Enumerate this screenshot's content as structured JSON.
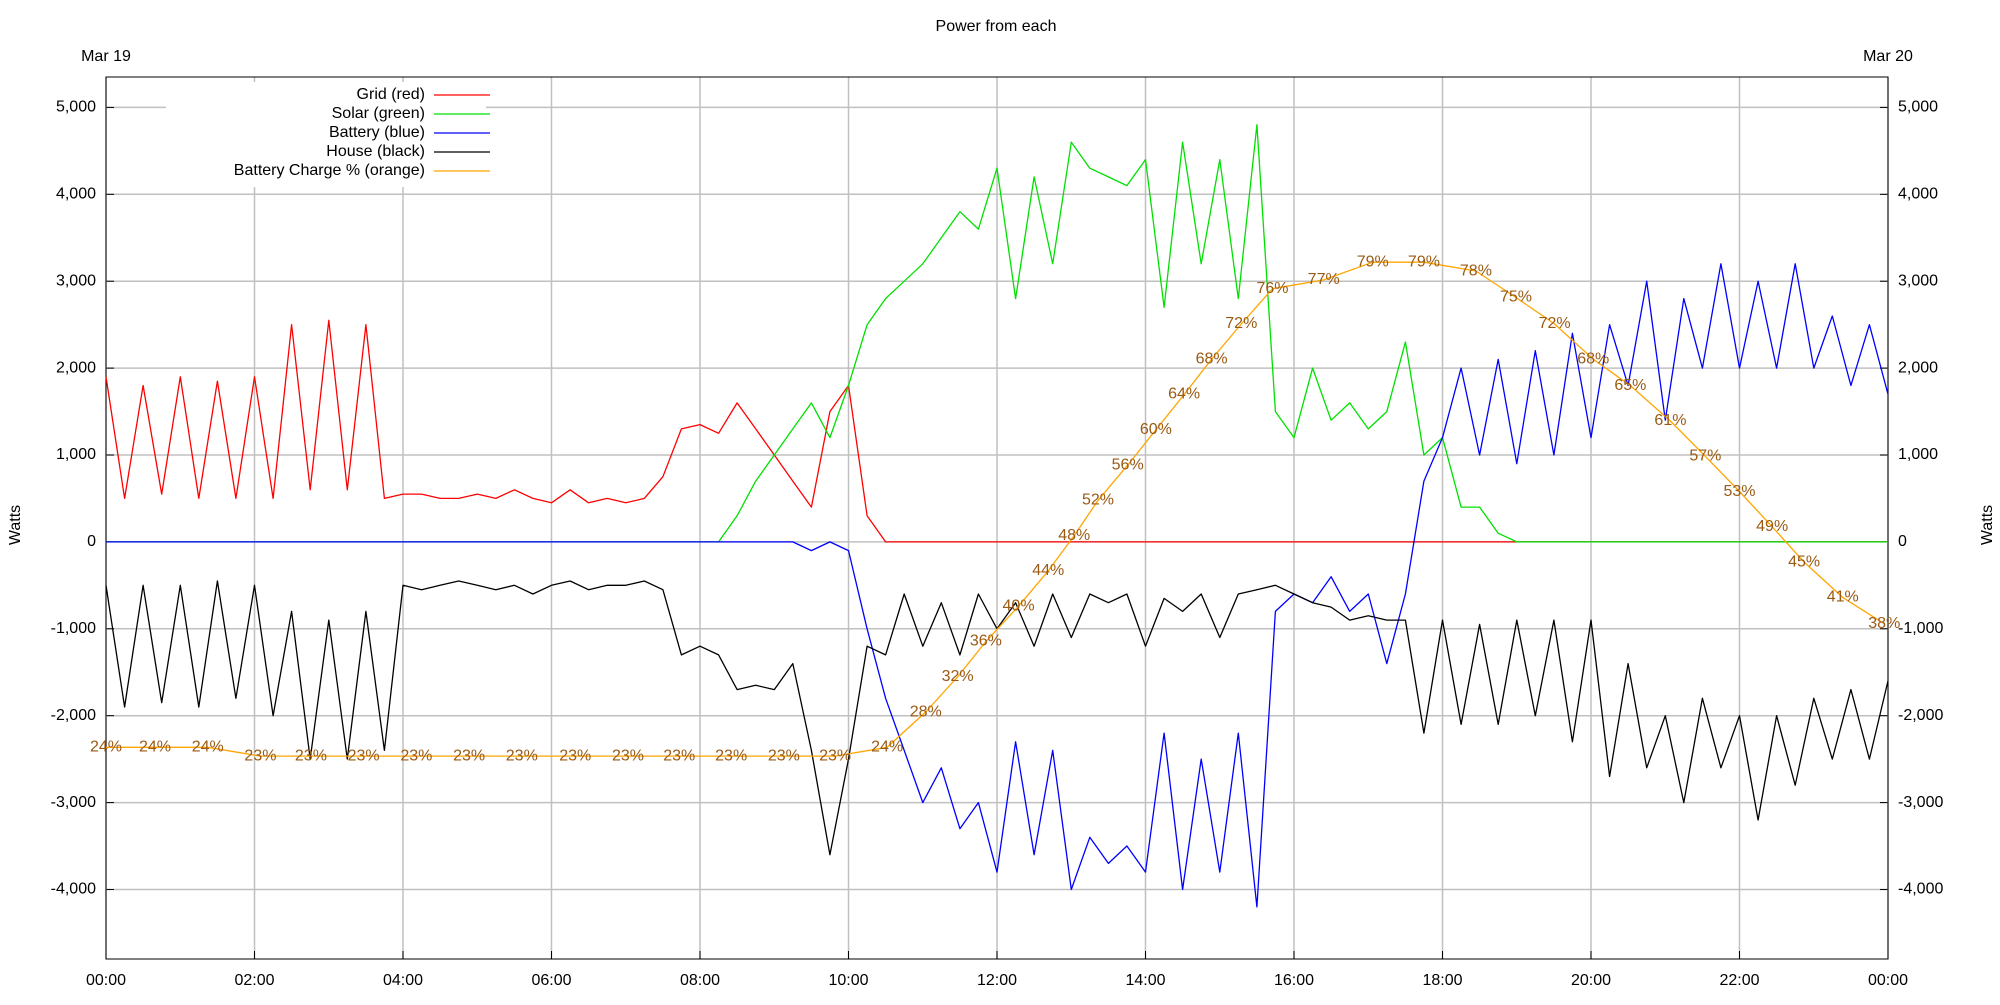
{
  "chart_data": {
    "type": "line",
    "title": "Power from each",
    "date_labels": [
      "Mar 19",
      "Mar 20"
    ],
    "ylabel": "Watts",
    "y2label": "Watts",
    "grid": true,
    "legend": "top-left",
    "label_color": "#9a5a14",
    "x": [
      0,
      0.25,
      0.5,
      0.75,
      1,
      1.25,
      1.5,
      1.75,
      2,
      2.25,
      2.5,
      2.75,
      3,
      3.25,
      3.5,
      3.75,
      4,
      4.25,
      4.5,
      4.75,
      5,
      5.25,
      5.5,
      5.75,
      6,
      6.25,
      6.5,
      6.75,
      7,
      7.25,
      7.5,
      7.75,
      8,
      8.25,
      8.5,
      8.75,
      9,
      9.25,
      9.5,
      9.75,
      10,
      10.25,
      10.5,
      10.75,
      11,
      11.25,
      11.5,
      11.75,
      12,
      12.25,
      12.5,
      12.75,
      13,
      13.25,
      13.5,
      13.75,
      14,
      14.25,
      14.5,
      14.75,
      15,
      15.25,
      15.5,
      15.75,
      16,
      16.25,
      16.5,
      16.75,
      17,
      17.25,
      17.5,
      17.75,
      18,
      18.25,
      18.5,
      18.75,
      19,
      19.25,
      19.5,
      19.75,
      20,
      20.25,
      20.5,
      20.75,
      21,
      21.25,
      21.5,
      21.75,
      22,
      22.25,
      22.5,
      22.75,
      23,
      23.25,
      23.5,
      23.75,
      24
    ],
    "xlim": [
      0,
      24
    ],
    "xticks": [
      {
        "value": 0,
        "label": "00:00"
      },
      {
        "value": 2,
        "label": "02:00"
      },
      {
        "value": 4,
        "label": "04:00"
      },
      {
        "value": 6,
        "label": "06:00"
      },
      {
        "value": 8,
        "label": "08:00"
      },
      {
        "value": 10,
        "label": "10:00"
      },
      {
        "value": 12,
        "label": "12:00"
      },
      {
        "value": 14,
        "label": "14:00"
      },
      {
        "value": 16,
        "label": "16:00"
      },
      {
        "value": 18,
        "label": "18:00"
      },
      {
        "value": 20,
        "label": "20:00"
      },
      {
        "value": 22,
        "label": "22:00"
      },
      {
        "value": 24,
        "label": "00:00"
      }
    ],
    "ylim": [
      -4800,
      5350
    ],
    "yticks": [
      {
        "value": -4000,
        "label": "-4,000"
      },
      {
        "value": -3000,
        "label": "-3,000"
      },
      {
        "value": -2000,
        "label": "-2,000"
      },
      {
        "value": -1000,
        "label": "-1,000"
      },
      0,
      {
        "value": 1000,
        "label": "1,000"
      },
      {
        "value": 2000,
        "label": "2,000"
      },
      {
        "value": 3000,
        "label": "3,000"
      },
      {
        "value": 4000,
        "label": "4,000"
      },
      {
        "value": 5000,
        "label": "5,000"
      }
    ],
    "y2lim": [
      0,
      100
    ],
    "series": [
      {
        "name": "Grid (red)",
        "color": "#ff0000",
        "values": [
          1900,
          500,
          1800,
          550,
          1900,
          500,
          1850,
          500,
          1900,
          500,
          2500,
          600,
          2550,
          600,
          2500,
          500,
          550,
          550,
          500,
          500,
          550,
          500,
          600,
          500,
          450,
          600,
          450,
          500,
          450,
          500,
          750,
          1300,
          1350,
          1250,
          1600,
          1300,
          1000,
          700,
          400,
          1500,
          1800,
          300,
          0,
          0,
          0,
          0,
          0,
          0,
          0,
          0,
          0,
          0,
          0,
          0,
          0,
          0,
          0,
          0,
          0,
          0,
          0,
          0,
          0,
          0,
          0,
          0,
          0,
          0,
          0,
          0,
          0,
          0,
          0,
          0,
          0,
          0,
          0,
          0,
          0,
          0,
          0,
          0,
          0,
          0,
          0,
          0,
          0,
          0,
          0,
          0,
          0,
          0,
          0,
          0,
          0,
          0,
          0
        ]
      },
      {
        "name": "Solar (green)",
        "color": "#00e000",
        "values": [
          0,
          0,
          0,
          0,
          0,
          0,
          0,
          0,
          0,
          0,
          0,
          0,
          0,
          0,
          0,
          0,
          0,
          0,
          0,
          0,
          0,
          0,
          0,
          0,
          0,
          0,
          0,
          0,
          0,
          0,
          0,
          0,
          0,
          0,
          300,
          700,
          1000,
          1300,
          1600,
          1200,
          1800,
          2500,
          2800,
          3000,
          3200,
          3500,
          3800,
          3600,
          4300,
          2800,
          4200,
          3200,
          4600,
          4300,
          4200,
          4100,
          4400,
          2700,
          4600,
          3200,
          4400,
          2800,
          4800,
          1500,
          1200,
          2000,
          1400,
          1600,
          1300,
          1500,
          2300,
          1000,
          1200,
          400,
          400,
          100,
          0,
          0,
          0,
          0,
          0,
          0,
          0,
          0,
          0,
          0,
          0,
          0,
          0,
          0,
          0,
          0,
          0,
          0,
          0,
          0,
          0
        ]
      },
      {
        "name": "Battery (blue)",
        "color": "#0000ff",
        "values": [
          0,
          0,
          0,
          0,
          0,
          0,
          0,
          0,
          0,
          0,
          0,
          0,
          0,
          0,
          0,
          0,
          0,
          0,
          0,
          0,
          0,
          0,
          0,
          0,
          0,
          0,
          0,
          0,
          0,
          0,
          0,
          0,
          0,
          0,
          0,
          0,
          0,
          0,
          -100,
          0,
          -100,
          -1000,
          -1800,
          -2400,
          -3000,
          -2600,
          -3300,
          -3000,
          -3800,
          -2300,
          -3600,
          -2400,
          -4000,
          -3400,
          -3700,
          -3500,
          -3800,
          -2200,
          -4000,
          -2500,
          -3800,
          -2200,
          -4200,
          -800,
          -600,
          -700,
          -400,
          -800,
          -600,
          -1400,
          -600,
          700,
          1200,
          2000,
          1000,
          2100,
          900,
          2200,
          1000,
          2400,
          1200,
          2500,
          1800,
          3000,
          1400,
          2800,
          2000,
          3200,
          2000,
          3000,
          2000,
          3200,
          2000,
          2600,
          1800,
          2500,
          1700
        ]
      },
      {
        "name": "House (black)",
        "color": "#000000",
        "values": [
          -500,
          -1900,
          -500,
          -1850,
          -500,
          -1900,
          -450,
          -1800,
          -500,
          -2000,
          -800,
          -2500,
          -900,
          -2500,
          -800,
          -2400,
          -500,
          -550,
          -500,
          -450,
          -500,
          -550,
          -500,
          -600,
          -500,
          -450,
          -550,
          -500,
          -500,
          -450,
          -550,
          -1300,
          -1200,
          -1300,
          -1700,
          -1650,
          -1700,
          -1400,
          -2400,
          -3600,
          -2500,
          -1200,
          -1300,
          -600,
          -1200,
          -700,
          -1300,
          -600,
          -1000,
          -700,
          -1200,
          -600,
          -1100,
          -600,
          -700,
          -600,
          -1200,
          -650,
          -800,
          -600,
          -1100,
          -600,
          -550,
          -500,
          -600,
          -700,
          -750,
          -900,
          -850,
          -900,
          -900,
          -2200,
          -900,
          -2100,
          -950,
          -2100,
          -900,
          -2000,
          -900,
          -2300,
          -900,
          -2700,
          -1400,
          -2600,
          -2000,
          -3000,
          -1800,
          -2600,
          -2000,
          -3200,
          -2000,
          -2800,
          -1800,
          -2500,
          -1700,
          -2500,
          -1600
        ]
      },
      {
        "name": "Battery Charge % (orange)",
        "color": "#ffa500",
        "axis": "y2",
        "x": [
          0,
          0.66,
          1.37,
          2.08,
          2.76,
          3.47,
          4.18,
          4.89,
          5.6,
          6.32,
          7.03,
          7.72,
          8.42,
          9.13,
          9.82,
          10.52,
          11.04,
          11.47,
          11.85,
          12.29,
          12.69,
          13.04,
          13.36,
          13.76,
          14.14,
          14.52,
          14.89,
          15.29,
          15.71,
          16.4,
          17.06,
          17.75,
          18.45,
          18.99,
          19.51,
          20.03,
          20.53,
          21.07,
          21.54,
          22,
          22.44,
          22.87,
          23.39,
          23.95
        ],
        "values": [
          24,
          24,
          24,
          23,
          23,
          23,
          23,
          23,
          23,
          23,
          23,
          23,
          23,
          23,
          23,
          24,
          28,
          32,
          36,
          40,
          44,
          48,
          52,
          56,
          60,
          64,
          68,
          72,
          76,
          77,
          79,
          79,
          78,
          75,
          72,
          68,
          65,
          61,
          57,
          53,
          49,
          45,
          41,
          38
        ],
        "value_labels": [
          "24%",
          "24%",
          "24%",
          "23%",
          "23%",
          "23%",
          "23%",
          "23%",
          "23%",
          "23%",
          "23%",
          "23%",
          "23%",
          "23%",
          "23%",
          "24%",
          "28%",
          "32%",
          "36%",
          "40%",
          "44%",
          "48%",
          "52%",
          "56%",
          "60%",
          "64%",
          "68%",
          "72%",
          "76%",
          "77%",
          "79%",
          "79%",
          "78%",
          "75%",
          "72%",
          "68%",
          "65%",
          "61%",
          "57%",
          "53%",
          "49%",
          "45%",
          "41%",
          "38%"
        ]
      }
    ]
  }
}
